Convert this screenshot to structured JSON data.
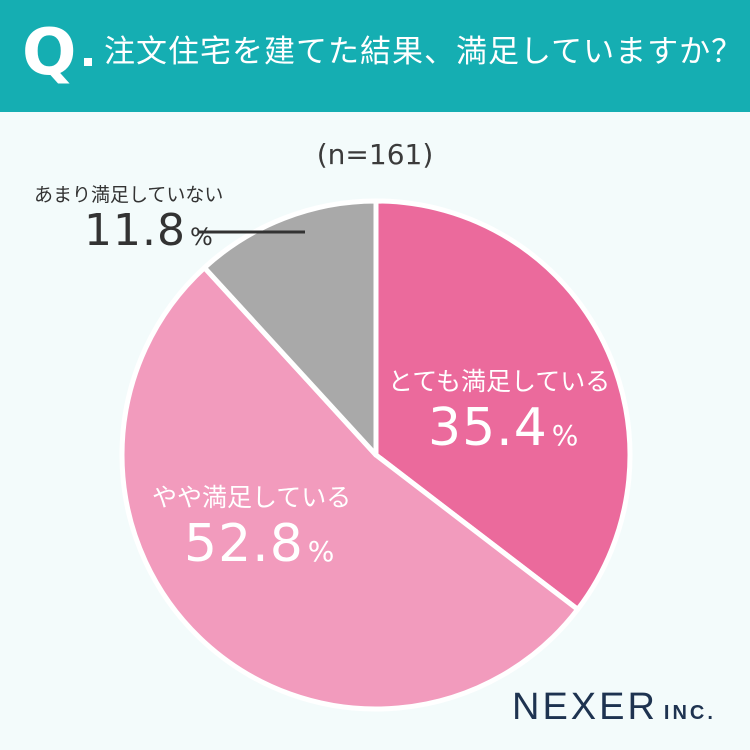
{
  "header": {
    "q_mark": "Q",
    "question": "注文住宅を建てた結果、満足していますか？"
  },
  "sample_size": "(n=161)",
  "chart_data": {
    "type": "pie",
    "title": "注文住宅を建てた結果、満足していますか？",
    "categories": [
      "とても満足している",
      "やや満足している",
      "あまり満足していない"
    ],
    "values": [
      35.4,
      52.8,
      11.8
    ],
    "unit": "%",
    "colors": [
      "#eb6a9c",
      "#f29bbd",
      "#a9a9a9"
    ]
  },
  "labels": [
    {
      "name": "とても満足している",
      "pct": "35.4",
      "unit": "%"
    },
    {
      "name": "やや満足している",
      "pct": "52.8",
      "unit": "%"
    },
    {
      "name": "あまり満足していない",
      "pct": "11.8",
      "unit": "%"
    }
  ],
  "logo": {
    "main": "NEXER",
    "suffix": "INC."
  }
}
